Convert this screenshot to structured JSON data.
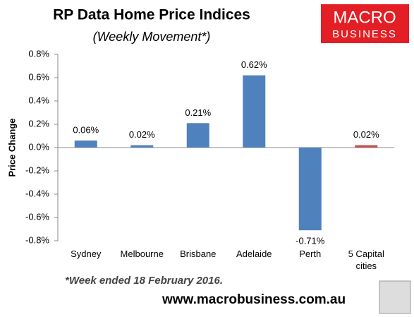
{
  "chart_data": {
    "type": "bar",
    "title": "RP Data Home Price Indices",
    "subtitle": "(Weekly Movement*)",
    "y_label": "Price Change",
    "categories": [
      "Sydney",
      "Melbourne",
      "Brisbane",
      "Adelaide",
      "Perth",
      "5 Capital cities"
    ],
    "values": [
      0.06,
      0.02,
      0.21,
      0.62,
      -0.71,
      0.02
    ],
    "value_labels": [
      "0.06%",
      "0.02%",
      "0.21%",
      "0.62%",
      "-0.71%",
      "0.02%"
    ],
    "colors": [
      "#4f81bd",
      "#4f81bd",
      "#4f81bd",
      "#4f81bd",
      "#4f81bd",
      "#c0504d"
    ],
    "ylim": [
      -0.8,
      0.8
    ],
    "yticks": [
      {
        "value": -0.8,
        "label": "-0.8%"
      },
      {
        "value": -0.6,
        "label": "-0.6%"
      },
      {
        "value": -0.4,
        "label": "-0.4%"
      },
      {
        "value": -0.2,
        "label": "-0.2%"
      },
      {
        "value": 0,
        "label": "0.0%"
      },
      {
        "value": 0.2,
        "label": "0.2%"
      },
      {
        "value": 0.4,
        "label": "0.4%"
      },
      {
        "value": 0.6,
        "label": "0.6%"
      },
      {
        "value": 0.8,
        "label": "0.8%"
      }
    ],
    "grid": false,
    "footnote": "*Week ended 18 February 2016.",
    "source": "www.macrobusiness.com.au",
    "logo": [
      "MACRO",
      "BUSINESS"
    ]
  }
}
